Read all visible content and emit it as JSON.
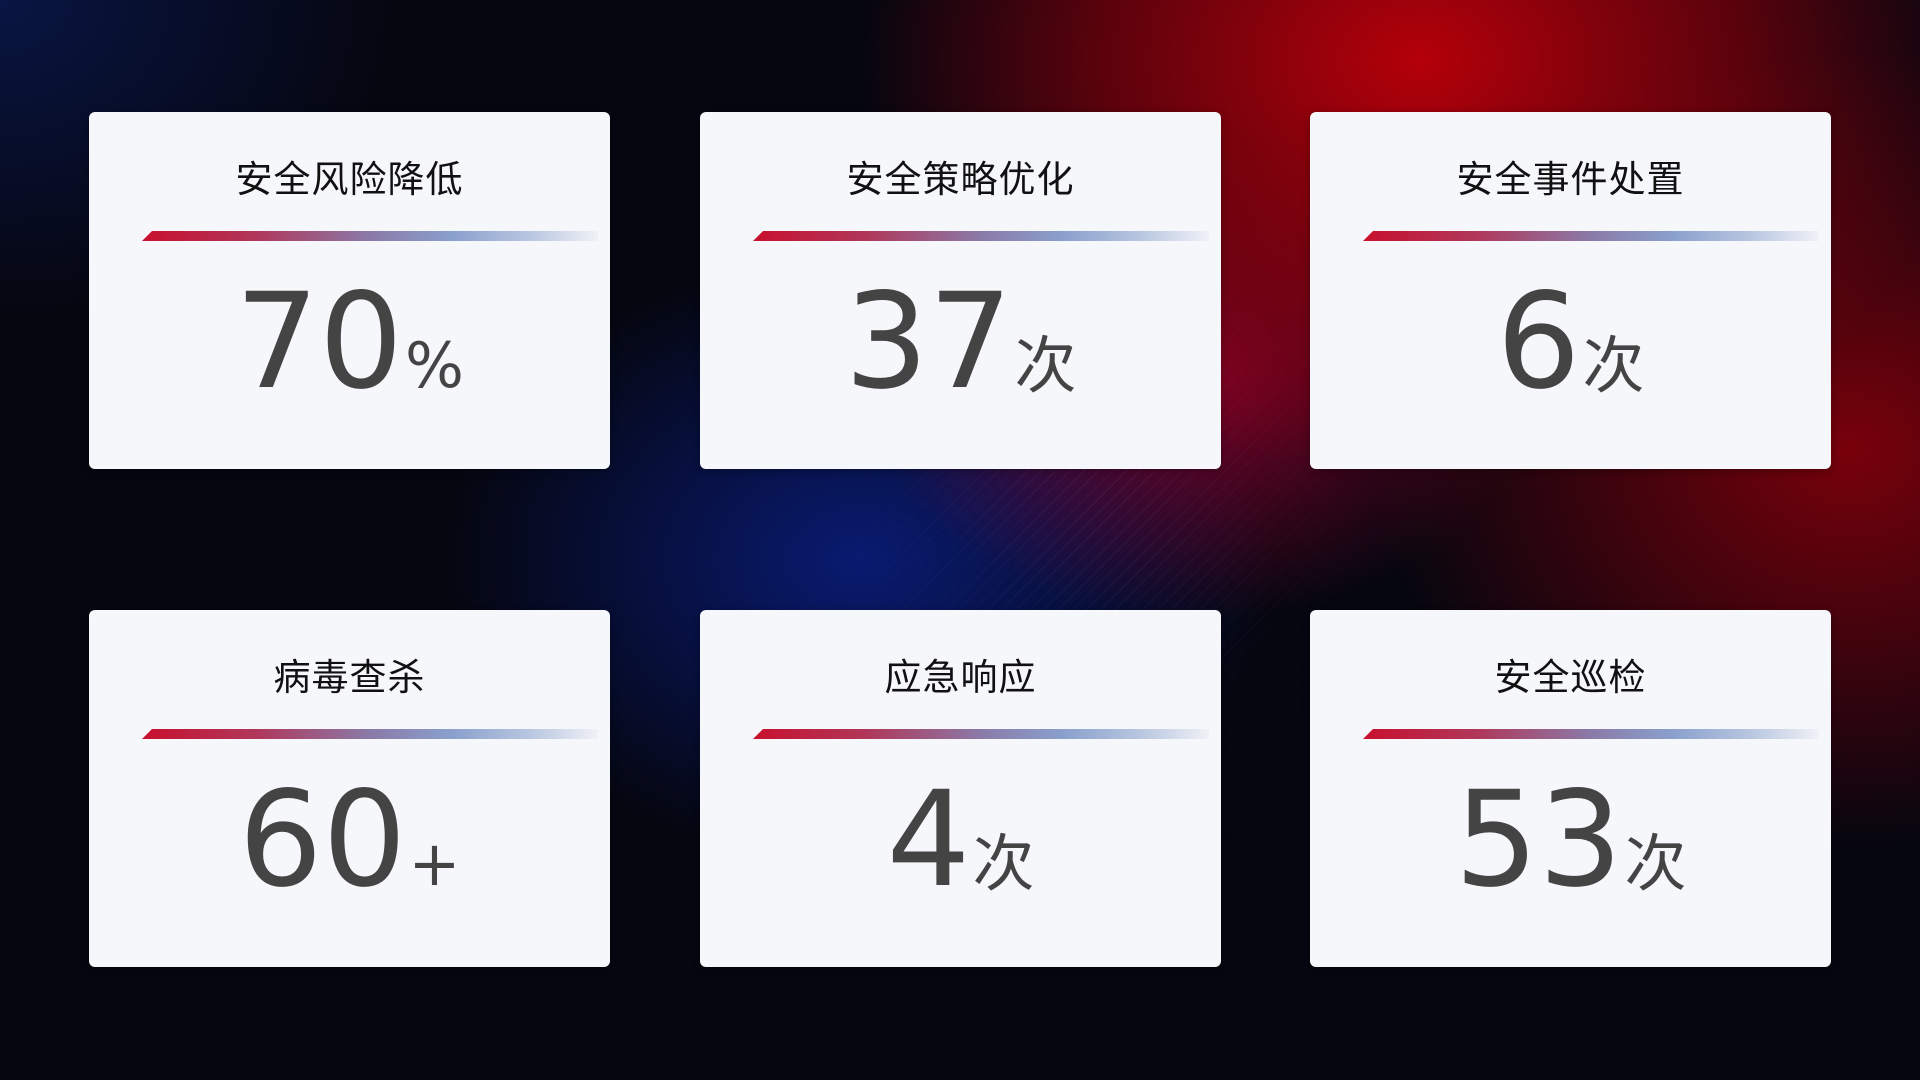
{
  "cards": [
    {
      "title": "安全风险降低",
      "value": "70",
      "unit": "%"
    },
    {
      "title": "安全策略优化",
      "value": "37",
      "unit": "次"
    },
    {
      "title": "安全事件处置",
      "value": "6",
      "unit": "次"
    },
    {
      "title": "病毒查杀",
      "value": "60",
      "unit": "+"
    },
    {
      "title": "应急响应",
      "value": "4",
      "unit": "次"
    },
    {
      "title": "安全巡检",
      "value": "53",
      "unit": "次"
    }
  ],
  "colors": {
    "accent_red": "#c8102e",
    "accent_blue": "#8aa0cc",
    "card_bg": "#f6f7fb",
    "value_text": "#444444"
  }
}
